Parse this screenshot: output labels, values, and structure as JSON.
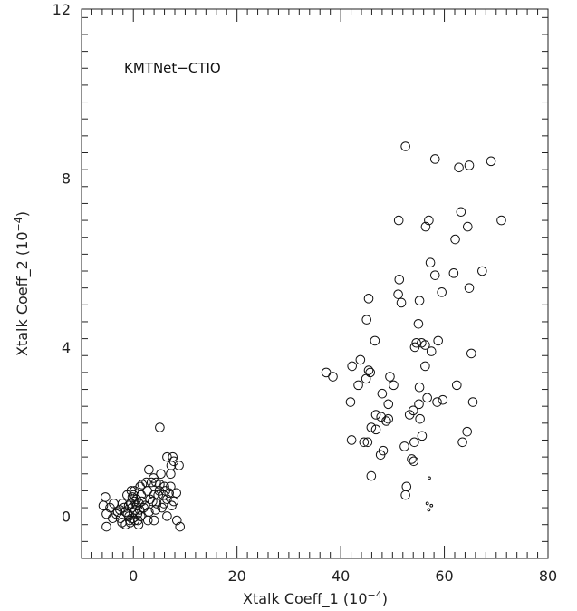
{
  "chart_data": {
    "type": "scatter",
    "title": "",
    "annotation": "KMTNet−CTIO",
    "xlabel": "Xtalk Coeff_1 (10",
    "xlabel_exp": "−4",
    "xlabel_close": ")",
    "ylabel": "Xtalk Coeff_2 (10",
    "ylabel_exp": "−4",
    "ylabel_close": ")",
    "xlim": [
      -10,
      80
    ],
    "ylim": [
      -1,
      12
    ],
    "xticks": [
      0,
      20,
      40,
      60,
      80
    ],
    "yticks": [
      0,
      4,
      8,
      12
    ],
    "grid": false,
    "marker": "open-circle",
    "series": [
      {
        "points": [
          [
            5.1,
            2.1
          ],
          [
            6.5,
            1.4
          ],
          [
            7.6,
            1.4
          ],
          [
            7.8,
            1.3
          ],
          [
            7.3,
            1.2
          ],
          [
            8.8,
            1.2
          ],
          [
            3.0,
            1.1
          ],
          [
            5.3,
            1.0
          ],
          [
            7.2,
            1.0
          ],
          [
            3.5,
            0.8
          ],
          [
            4.4,
            0.8
          ],
          [
            1.7,
            0.75
          ],
          [
            7.2,
            0.7
          ],
          [
            -0.4,
            0.6
          ],
          [
            0.2,
            0.6
          ],
          [
            2.7,
            0.6
          ],
          [
            5.0,
            0.6
          ],
          [
            6.2,
            0.6
          ],
          [
            8.3,
            0.55
          ],
          [
            -1.2,
            0.5
          ],
          [
            1.5,
            0.5
          ],
          [
            4.0,
            0.5
          ],
          [
            5.8,
            0.5
          ],
          [
            -5.4,
            0.45
          ],
          [
            0.6,
            0.4
          ],
          [
            3.2,
            0.4
          ],
          [
            6.5,
            0.4
          ],
          [
            7.8,
            0.35
          ],
          [
            -3.8,
            0.3
          ],
          [
            -2.1,
            0.3
          ],
          [
            1.1,
            0.3
          ],
          [
            4.5,
            0.3
          ],
          [
            -5.8,
            0.25
          ],
          [
            -4.5,
            0.2
          ],
          [
            2.0,
            0.2
          ],
          [
            5.5,
            0.2
          ],
          [
            -3.0,
            0.1
          ],
          [
            -1.5,
            0.1
          ],
          [
            0.0,
            0.1
          ],
          [
            3.0,
            0.1
          ],
          [
            -5.2,
            0.05
          ],
          [
            -0.8,
            0.0
          ],
          [
            1.4,
            0.0
          ],
          [
            6.5,
            0.0
          ],
          [
            8.4,
            -0.1
          ],
          [
            -2.5,
            -0.05
          ],
          [
            0.3,
            -0.1
          ],
          [
            2.8,
            -0.1
          ],
          [
            4.0,
            -0.1
          ],
          [
            -0.6,
            -0.15
          ],
          [
            1.0,
            -0.2
          ],
          [
            -1.5,
            -0.2
          ],
          [
            -5.2,
            -0.25
          ],
          [
            9.0,
            -0.25
          ],
          [
            -0.3,
            0.2
          ],
          [
            0.4,
            0.15
          ],
          [
            -0.9,
            0.25
          ],
          [
            0.8,
            0.05
          ],
          [
            -0.1,
            -0.05
          ],
          [
            0.2,
            0.35
          ],
          [
            -0.5,
            0.3
          ],
          [
            0.6,
            0.25
          ],
          [
            -0.2,
            0.45
          ],
          [
            1.2,
            0.15
          ],
          [
            -1.1,
            0.05
          ],
          [
            0.9,
            -0.1
          ],
          [
            -0.7,
            -0.1
          ],
          [
            0.0,
            0.5
          ],
          [
            1.6,
            0.35
          ],
          [
            2.3,
            0.25
          ],
          [
            -1.8,
            0.2
          ],
          [
            -2.6,
            0.15
          ],
          [
            3.7,
            0.35
          ],
          [
            4.8,
            0.5
          ],
          [
            5.9,
            0.3
          ],
          [
            6.9,
            0.55
          ],
          [
            7.4,
            0.25
          ],
          [
            2.5,
            0.8
          ],
          [
            1.3,
            0.7
          ],
          [
            3.9,
            0.9
          ],
          [
            -3.3,
            0.05
          ],
          [
            -4.0,
            -0.05
          ],
          [
            -2.2,
            -0.15
          ],
          [
            4.3,
            0.15
          ],
          [
            5.1,
            0.75
          ],
          [
            6.0,
            0.7
          ]
        ]
      },
      {
        "points": [
          [
            52.5,
            8.75
          ],
          [
            58.2,
            8.45
          ],
          [
            69.0,
            8.4
          ],
          [
            64.8,
            8.3
          ],
          [
            62.8,
            8.25
          ],
          [
            63.2,
            7.2
          ],
          [
            57.0,
            7.0
          ],
          [
            51.2,
            7.0
          ],
          [
            71.0,
            7.0
          ],
          [
            56.4,
            6.85
          ],
          [
            64.5,
            6.85
          ],
          [
            62.1,
            6.55
          ],
          [
            57.3,
            6.0
          ],
          [
            67.3,
            5.8
          ],
          [
            61.8,
            5.75
          ],
          [
            58.2,
            5.7
          ],
          [
            51.3,
            5.6
          ],
          [
            64.8,
            5.4
          ],
          [
            59.5,
            5.3
          ],
          [
            51.1,
            5.25
          ],
          [
            45.4,
            5.15
          ],
          [
            55.2,
            5.1
          ],
          [
            51.7,
            5.05
          ],
          [
            45.0,
            4.65
          ],
          [
            55.0,
            4.55
          ],
          [
            46.6,
            4.15
          ],
          [
            58.8,
            4.15
          ],
          [
            54.6,
            4.1
          ],
          [
            55.6,
            4.1
          ],
          [
            56.3,
            4.05
          ],
          [
            54.3,
            4.0
          ],
          [
            57.5,
            3.9
          ],
          [
            65.2,
            3.85
          ],
          [
            43.8,
            3.7
          ],
          [
            42.2,
            3.55
          ],
          [
            56.3,
            3.55
          ],
          [
            45.4,
            3.45
          ],
          [
            45.7,
            3.4
          ],
          [
            37.2,
            3.4
          ],
          [
            38.5,
            3.3
          ],
          [
            49.5,
            3.3
          ],
          [
            44.9,
            3.25
          ],
          [
            50.2,
            3.1
          ],
          [
            43.4,
            3.1
          ],
          [
            55.2,
            3.05
          ],
          [
            62.4,
            3.1
          ],
          [
            48.0,
            2.9
          ],
          [
            56.7,
            2.8
          ],
          [
            59.7,
            2.75
          ],
          [
            65.5,
            2.7
          ],
          [
            41.9,
            2.7
          ],
          [
            55.1,
            2.65
          ],
          [
            49.2,
            2.65
          ],
          [
            58.6,
            2.7
          ],
          [
            53.3,
            2.4
          ],
          [
            54.0,
            2.5
          ],
          [
            46.8,
            2.4
          ],
          [
            47.8,
            2.35
          ],
          [
            48.8,
            2.25
          ],
          [
            49.2,
            2.3
          ],
          [
            55.3,
            2.3
          ],
          [
            45.9,
            2.1
          ],
          [
            46.8,
            2.05
          ],
          [
            64.4,
            2.0
          ],
          [
            55.7,
            1.9
          ],
          [
            42.1,
            1.8
          ],
          [
            44.5,
            1.75
          ],
          [
            45.2,
            1.75
          ],
          [
            54.2,
            1.75
          ],
          [
            63.5,
            1.75
          ],
          [
            52.3,
            1.65
          ],
          [
            48.2,
            1.55
          ],
          [
            47.7,
            1.45
          ],
          [
            53.7,
            1.35
          ],
          [
            54.1,
            1.3
          ],
          [
            45.9,
            0.95
          ],
          [
            52.7,
            0.7
          ],
          [
            52.5,
            0.5
          ]
        ]
      },
      {
        "marker": "dot",
        "points": [
          [
            57.1,
            0.9
          ],
          [
            56.7,
            0.3
          ],
          [
            57.5,
            0.25
          ],
          [
            57.0,
            0.15
          ]
        ]
      }
    ]
  }
}
